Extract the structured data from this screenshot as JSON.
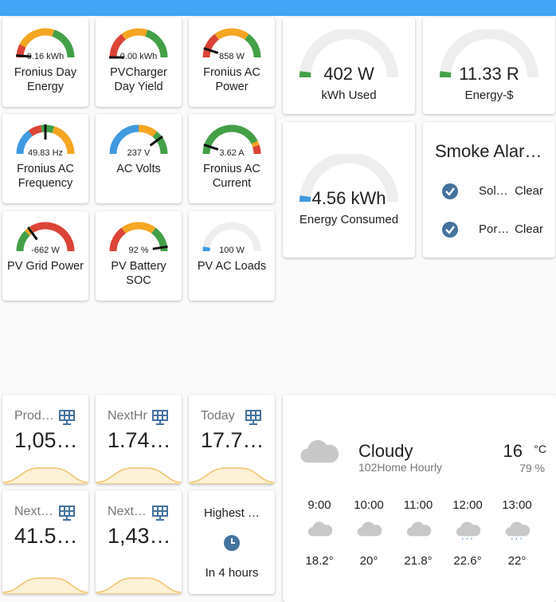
{
  "gauges": [
    {
      "value": "0.16 kWh",
      "name": "Fronius Day Energy"
    },
    {
      "value": "0.00 kWh",
      "name": "PVCharger Day Yield"
    },
    {
      "value": "858 W",
      "name": "Fronius AC Power"
    },
    {
      "value": "49.83 Hz",
      "name": "Fronius AC Frequency"
    },
    {
      "value": "237 V",
      "name": "AC Volts"
    },
    {
      "value": "3.62 A",
      "name": "Fronius AC Current"
    },
    {
      "value": "-662 W",
      "name": "PV Grid Power"
    },
    {
      "value": "92 %",
      "name": "PV Battery SOC"
    },
    {
      "value": "100 W",
      "name": "PV AC Loads"
    }
  ],
  "big_gauges": [
    {
      "value": "402 W",
      "name": "kWh Used"
    },
    {
      "value": "11.33 R",
      "name": "Energy-$"
    },
    {
      "value": "4.56 kWh",
      "name": "Energy Consumed"
    }
  ],
  "smoke_alarm": {
    "title": "Smoke Alar…",
    "entities": [
      {
        "name": "Sol…",
        "state": "Clear"
      },
      {
        "name": "Por…",
        "state": "Clear"
      }
    ]
  },
  "forecast_tiles": [
    {
      "name": "Prod…",
      "value": "1,05…"
    },
    {
      "name": "NextHr",
      "value": "1.74…"
    },
    {
      "name": "Today",
      "value": "17.7…"
    },
    {
      "name": "Next…",
      "value": "41.5…"
    },
    {
      "name": "Next…",
      "value": "1,43…"
    }
  ],
  "highest": {
    "name": "Highest …",
    "state": "In 4 hours"
  },
  "weather": {
    "condition": "Cloudy",
    "name": "102Home Hourly",
    "temperature": "16",
    "unit": "°C",
    "humidity": "79 %",
    "forecast": [
      {
        "time": "9:00",
        "temp": "18.2°"
      },
      {
        "time": "10:00",
        "temp": "20°"
      },
      {
        "time": "11:00",
        "temp": "21.8°"
      },
      {
        "time": "12:00",
        "temp": "22.6°"
      },
      {
        "time": "13:00",
        "temp": "22°"
      }
    ]
  }
}
